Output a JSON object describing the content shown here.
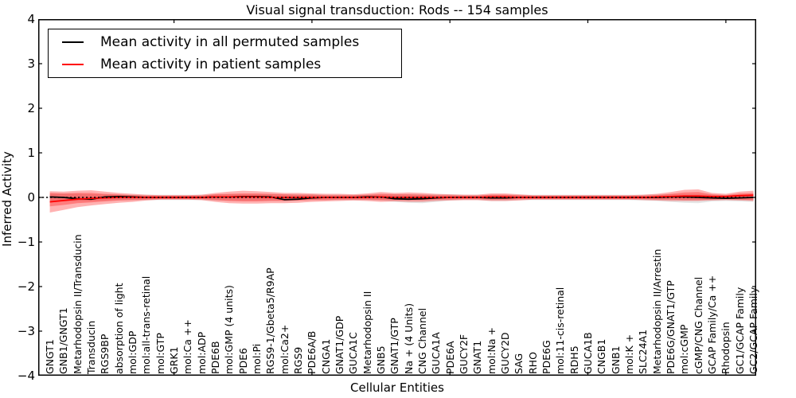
{
  "figure": {
    "title": "Visual signal transduction: Rods -- 154 samples",
    "xlabel": "Cellular Entities",
    "ylabel": "Inferred Activity"
  },
  "legend": {
    "position": "upper left",
    "items": [
      {
        "label": "Mean activity in all permuted samples",
        "color": "#000000"
      },
      {
        "label": "Mean activity in patient samples",
        "color": "#ff0000"
      }
    ]
  },
  "chart_data": {
    "type": "line",
    "title": "Visual signal transduction: Rods -- 154 samples",
    "xlabel": "Cellular Entities",
    "ylabel": "Inferred Activity",
    "ylim": [
      -4,
      4
    ],
    "yticks": [
      4,
      3,
      2,
      1,
      0,
      -1,
      -2,
      -3,
      -4
    ],
    "xlim": [
      0.16,
      52.2
    ],
    "xticks": [
      10,
      20,
      30,
      40,
      50
    ],
    "grid": false,
    "legend_position": "upper left",
    "zero_line": {
      "style": "dashed",
      "color": "#000000",
      "y": 0
    },
    "categories": [
      "GNGT1",
      "GNB1/GNGT1",
      "Metarhodopsin II/Transducin",
      "Transducin",
      "RGS9BP",
      "absorption of light",
      "mol:GDP",
      "mol:all-trans-retinal",
      "mol:GTP",
      "GRK1",
      "mol:Ca ++",
      "mol:ADP",
      "PDE6B",
      "mol:GMP (4 units)",
      "PDE6",
      "mol:Pi",
      "RGS9-1/Gbeta5/R9AP",
      "mol:Ca2+",
      "RGS9",
      "PDE6A/B",
      "CNGA1",
      "GNAT1/GDP",
      "GUCA1C",
      "Metarhodopsin II",
      "GNB5",
      "GNAT1/GTP",
      "Na + (4 Units)",
      "CNG Channel",
      "GUCA1A",
      "PDE6A",
      "GUCY2F",
      "GNAT1",
      "mol:Na +",
      "GUCY2D",
      "SAG",
      "RHO",
      "PDE6G",
      "mol:11-cis-retinal",
      "RDH5",
      "GUCA1B",
      "CNGB1",
      "GNB1",
      "mol:K +",
      "SLC24A1",
      "Metarhodopsin II/Arrestin",
      "PDE6G/GNAT1/GTP",
      "mol:cGMP",
      "cGMP/CNG Channel",
      "GCAP Family/Ca ++",
      "Rhodopsin",
      "GC1/GCAP Family",
      "GC2/GCAP Family"
    ],
    "series": [
      {
        "name": "Mean activity in all permuted samples",
        "color": "#000000",
        "values": [
          0.01,
          0.0,
          -0.03,
          -0.04,
          0.01,
          0.02,
          0.01,
          0.0,
          0.0,
          0.0,
          0.0,
          0.0,
          0.01,
          0.01,
          0.02,
          0.02,
          0.01,
          -0.05,
          -0.04,
          -0.01,
          0.0,
          0.0,
          0.0,
          0.01,
          0.01,
          -0.03,
          -0.04,
          -0.03,
          -0.01,
          0.0,
          0.0,
          0.0,
          -0.01,
          -0.01,
          0.0,
          0.0,
          0.0,
          0.0,
          0.0,
          0.0,
          0.0,
          0.0,
          0.0,
          0.0,
          0.0,
          0.01,
          0.01,
          0.0,
          -0.01,
          -0.02,
          -0.01,
          0.0
        ]
      },
      {
        "name": "Mean activity in patient samples",
        "color": "#ff0000",
        "values": [
          -0.1,
          -0.07,
          -0.04,
          -0.02,
          -0.01,
          0.0,
          0.0,
          0.0,
          0.0,
          0.0,
          0.0,
          0.0,
          0.01,
          0.01,
          0.01,
          0.01,
          0.0,
          0.0,
          0.0,
          0.0,
          0.0,
          0.0,
          0.0,
          0.0,
          0.01,
          0.0,
          0.0,
          0.0,
          0.0,
          0.0,
          0.0,
          0.0,
          0.01,
          0.01,
          0.0,
          0.0,
          0.0,
          0.0,
          0.0,
          0.0,
          0.0,
          0.0,
          0.0,
          0.0,
          0.01,
          0.02,
          0.03,
          0.03,
          0.02,
          0.02,
          0.04,
          0.05
        ]
      }
    ],
    "bands": [
      {
        "name": "permuted-samples-range",
        "color": "rgba(0,0,0,0.10)",
        "upper": [
          0.08,
          0.08,
          0.08,
          0.07,
          0.07,
          0.06,
          0.06,
          0.06,
          0.06,
          0.06,
          0.06,
          0.06,
          0.07,
          0.07,
          0.07,
          0.07,
          0.07,
          0.07,
          0.07,
          0.07,
          0.06,
          0.06,
          0.06,
          0.06,
          0.06,
          0.07,
          0.07,
          0.07,
          0.07,
          0.07,
          0.06,
          0.06,
          0.06,
          0.06,
          0.06,
          0.06,
          0.06,
          0.06,
          0.06,
          0.06,
          0.06,
          0.06,
          0.06,
          0.06,
          0.07,
          0.07,
          0.07,
          0.07,
          0.06,
          0.06,
          0.06,
          0.06
        ],
        "lower": [
          -0.1,
          -0.09,
          -0.08,
          -0.08,
          -0.07,
          -0.06,
          -0.06,
          -0.06,
          -0.06,
          -0.06,
          -0.06,
          -0.06,
          -0.07,
          -0.07,
          -0.07,
          -0.07,
          -0.07,
          -0.07,
          -0.07,
          -0.06,
          -0.06,
          -0.06,
          -0.06,
          -0.06,
          -0.07,
          -0.1,
          -0.12,
          -0.13,
          -0.1,
          -0.07,
          -0.06,
          -0.06,
          -0.08,
          -0.08,
          -0.06,
          -0.06,
          -0.06,
          -0.06,
          -0.06,
          -0.06,
          -0.06,
          -0.06,
          -0.06,
          -0.07,
          -0.08,
          -0.1,
          -0.12,
          -0.13,
          -0.09,
          -0.08,
          -0.09,
          -0.1
        ]
      },
      {
        "name": "patient-samples-range-outer",
        "color": "rgba(255,0,0,0.30)",
        "upper": [
          0.14,
          0.13,
          0.15,
          0.16,
          0.13,
          0.1,
          0.08,
          0.06,
          0.05,
          0.05,
          0.05,
          0.06,
          0.1,
          0.13,
          0.15,
          0.14,
          0.12,
          0.1,
          0.1,
          0.09,
          0.08,
          0.08,
          0.07,
          0.09,
          0.12,
          0.1,
          0.11,
          0.1,
          0.08,
          0.07,
          0.06,
          0.06,
          0.09,
          0.09,
          0.07,
          0.05,
          0.05,
          0.05,
          0.05,
          0.05,
          0.05,
          0.05,
          0.05,
          0.06,
          0.08,
          0.12,
          0.17,
          0.18,
          0.1,
          0.08,
          0.13,
          0.15
        ],
        "lower": [
          -0.34,
          -0.28,
          -0.22,
          -0.18,
          -0.15,
          -0.12,
          -0.1,
          -0.07,
          -0.05,
          -0.05,
          -0.05,
          -0.06,
          -0.1,
          -0.13,
          -0.14,
          -0.14,
          -0.13,
          -0.13,
          -0.12,
          -0.1,
          -0.09,
          -0.08,
          -0.07,
          -0.08,
          -0.1,
          -0.09,
          -0.1,
          -0.1,
          -0.08,
          -0.07,
          -0.06,
          -0.06,
          -0.08,
          -0.08,
          -0.07,
          -0.05,
          -0.05,
          -0.05,
          -0.05,
          -0.05,
          -0.05,
          -0.05,
          -0.05,
          -0.06,
          -0.07,
          -0.08,
          -0.08,
          -0.08,
          -0.07,
          -0.06,
          -0.07,
          -0.08
        ]
      },
      {
        "name": "patient-samples-range-inner",
        "color": "rgba(255,0,0,0.30)",
        "upper": [
          0.1,
          0.09,
          0.1,
          0.1,
          0.08,
          0.07,
          0.05,
          0.04,
          0.04,
          0.04,
          0.04,
          0.04,
          0.07,
          0.08,
          0.09,
          0.09,
          0.08,
          0.07,
          0.06,
          0.06,
          0.05,
          0.05,
          0.05,
          0.06,
          0.08,
          0.07,
          0.07,
          0.06,
          0.05,
          0.05,
          0.04,
          0.04,
          0.06,
          0.06,
          0.05,
          0.04,
          0.04,
          0.04,
          0.04,
          0.04,
          0.04,
          0.04,
          0.04,
          0.04,
          0.05,
          0.08,
          0.11,
          0.12,
          0.07,
          0.05,
          0.09,
          0.1
        ],
        "lower": [
          -0.2,
          -0.17,
          -0.13,
          -0.11,
          -0.09,
          -0.07,
          -0.06,
          -0.05,
          -0.04,
          -0.04,
          -0.04,
          -0.04,
          -0.06,
          -0.08,
          -0.09,
          -0.09,
          -0.08,
          -0.08,
          -0.07,
          -0.06,
          -0.06,
          -0.05,
          -0.05,
          -0.05,
          -0.06,
          -0.06,
          -0.06,
          -0.06,
          -0.05,
          -0.05,
          -0.04,
          -0.04,
          -0.05,
          -0.05,
          -0.04,
          -0.04,
          -0.04,
          -0.04,
          -0.04,
          -0.04,
          -0.04,
          -0.04,
          -0.04,
          -0.04,
          -0.05,
          -0.05,
          -0.06,
          -0.06,
          -0.05,
          -0.04,
          -0.05,
          -0.06
        ]
      }
    ]
  }
}
